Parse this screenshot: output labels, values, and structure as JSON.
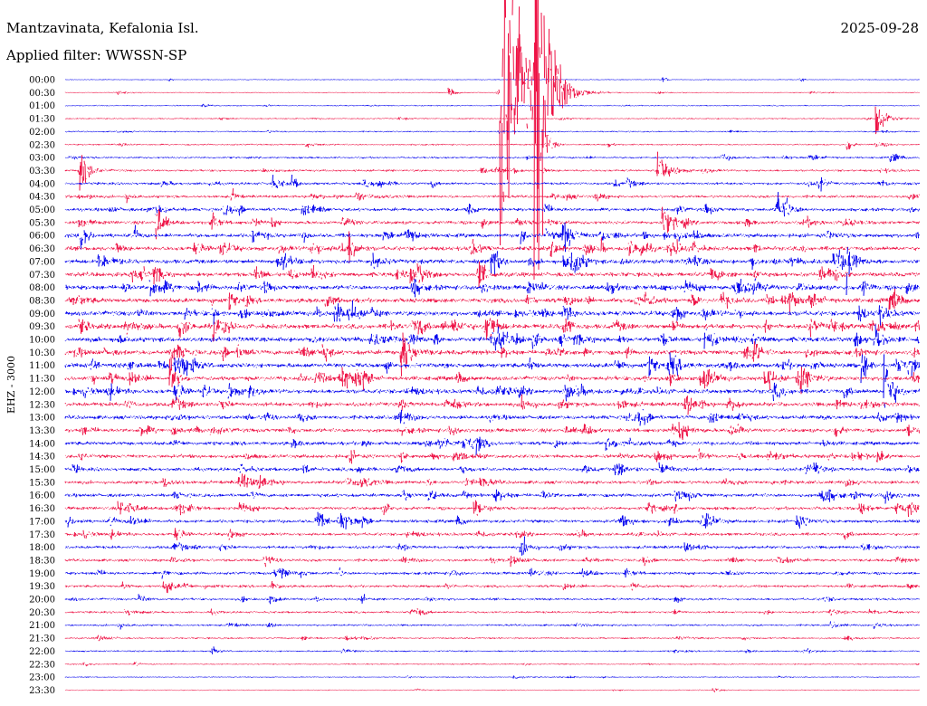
{
  "header": {
    "station": "Mantzavinata, Kefalonia Isl.",
    "date": "2025-09-28",
    "filter_label": "Applied filter: WWSSN-SP"
  },
  "colors": {
    "trace_a": "#0000ee",
    "trace_b": "#ee1144"
  },
  "chart_data": {
    "type": "line",
    "title": "Mantzavinata, Kefalonia Isl.",
    "ylabel": "EHZ - 3000",
    "row_interval_minutes": 30,
    "rows": [
      "00:00",
      "00:30",
      "01:00",
      "01:30",
      "02:00",
      "02:30",
      "03:00",
      "03:30",
      "04:00",
      "04:30",
      "05:00",
      "05:30",
      "06:00",
      "06:30",
      "07:00",
      "07:30",
      "08:00",
      "08:30",
      "09:00",
      "09:30",
      "10:00",
      "10:30",
      "11:00",
      "11:30",
      "12:00",
      "12:30",
      "13:00",
      "13:30",
      "14:00",
      "14:30",
      "15:00",
      "15:30",
      "16:00",
      "16:30",
      "17:00",
      "17:30",
      "18:00",
      "18:30",
      "19:00",
      "19:30",
      "20:00",
      "20:30",
      "21:00",
      "21:30",
      "22:00",
      "22:30",
      "23:00",
      "23:30"
    ],
    "background_noise": [
      0.4,
      0.4,
      0.5,
      0.6,
      0.6,
      0.7,
      0.9,
      1.0,
      1.2,
      1.3,
      1.5,
      1.6,
      1.8,
      1.9,
      2.0,
      2.0,
      2.1,
      2.1,
      2.2,
      2.2,
      2.2,
      2.1,
      2.1,
      2.0,
      2.0,
      1.9,
      1.8,
      1.8,
      1.7,
      1.7,
      1.6,
      1.6,
      1.6,
      1.5,
      1.5,
      1.4,
      1.4,
      1.3,
      1.3,
      1.2,
      1.1,
      1.0,
      0.9,
      0.8,
      0.7,
      0.6,
      0.5,
      0.4
    ],
    "events": [
      {
        "row": 1,
        "minute": 15.3,
        "amp": 220,
        "dur": 16
      },
      {
        "row": 1,
        "minute": 16.5,
        "amp": 230,
        "dur": 12
      },
      {
        "row": 1,
        "minute": 13.5,
        "amp": 5,
        "dur": 5
      },
      {
        "row": 0,
        "minute": 21.0,
        "amp": 4,
        "dur": 3
      },
      {
        "row": 3,
        "minute": 28.5,
        "amp": 22,
        "dur": 8
      },
      {
        "row": 5,
        "minute": 27.5,
        "amp": 6,
        "dur": 4
      },
      {
        "row": 5,
        "minute": 17.0,
        "amp": 8,
        "dur": 4
      },
      {
        "row": 7,
        "minute": 20.8,
        "amp": 14,
        "dur": 10
      },
      {
        "row": 7,
        "minute": 0.5,
        "amp": 28,
        "dur": 7
      },
      {
        "row": 8,
        "minute": 26.5,
        "amp": 8,
        "dur": 5
      },
      {
        "row": 8,
        "minute": 8.0,
        "amp": 6,
        "dur": 4
      },
      {
        "row": 10,
        "minute": 25.0,
        "amp": 16,
        "dur": 8
      },
      {
        "row": 11,
        "minute": 21.0,
        "amp": 14,
        "dur": 8
      },
      {
        "row": 11,
        "minute": 3.2,
        "amp": 20,
        "dur": 6
      },
      {
        "row": 12,
        "minute": 17.5,
        "amp": 18,
        "dur": 8
      },
      {
        "row": 12,
        "minute": 16.0,
        "amp": 10,
        "dur": 4
      },
      {
        "row": 12,
        "minute": 0.5,
        "amp": 12,
        "dur": 4
      },
      {
        "row": 13,
        "minute": 10.0,
        "amp": 12,
        "dur": 6
      },
      {
        "row": 14,
        "minute": 27.5,
        "amp": 14,
        "dur": 6
      },
      {
        "row": 14,
        "minute": 15.0,
        "amp": 16,
        "dur": 6
      },
      {
        "row": 15,
        "minute": 14.5,
        "amp": 14,
        "dur": 6
      },
      {
        "row": 16,
        "minute": 28.0,
        "amp": 10,
        "dur": 5
      },
      {
        "row": 16,
        "minute": 3.0,
        "amp": 10,
        "dur": 5
      },
      {
        "row": 17,
        "minute": 30.5,
        "amp": 12,
        "dur": 5
      },
      {
        "row": 17,
        "minute": 20.0,
        "amp": 8,
        "dur": 5
      },
      {
        "row": 18,
        "minute": 30.5,
        "amp": 12,
        "dur": 5
      },
      {
        "row": 18,
        "minute": 17.5,
        "amp": 14,
        "dur": 6
      },
      {
        "row": 18,
        "minute": 5.2,
        "amp": 8,
        "dur": 4
      },
      {
        "row": 19,
        "minute": 30.5,
        "amp": 14,
        "dur": 6
      },
      {
        "row": 19,
        "minute": 17.5,
        "amp": 14,
        "dur": 6
      },
      {
        "row": 19,
        "minute": 14.8,
        "amp": 12,
        "dur": 5
      },
      {
        "row": 19,
        "minute": 4.0,
        "amp": 14,
        "dur": 6
      },
      {
        "row": 19,
        "minute": 0.5,
        "amp": 10,
        "dur": 5
      },
      {
        "row": 20,
        "minute": 22.5,
        "amp": 12,
        "dur": 6
      },
      {
        "row": 20,
        "minute": 28.5,
        "amp": 8,
        "dur": 4
      },
      {
        "row": 21,
        "minute": 11.8,
        "amp": 22,
        "dur": 8
      },
      {
        "row": 21,
        "minute": 5.5,
        "amp": 10,
        "dur": 5
      },
      {
        "row": 22,
        "minute": 28.0,
        "amp": 14,
        "dur": 5
      },
      {
        "row": 23,
        "minute": 3.7,
        "amp": 16,
        "dur": 6
      },
      {
        "row": 23,
        "minute": 24.6,
        "amp": 16,
        "dur": 6
      },
      {
        "row": 24,
        "minute": 28.8,
        "amp": 40,
        "dur": 7
      },
      {
        "row": 24,
        "minute": 6.5,
        "amp": 8,
        "dur": 5
      },
      {
        "row": 24,
        "minute": 17.6,
        "amp": 8,
        "dur": 5
      }
    ]
  }
}
